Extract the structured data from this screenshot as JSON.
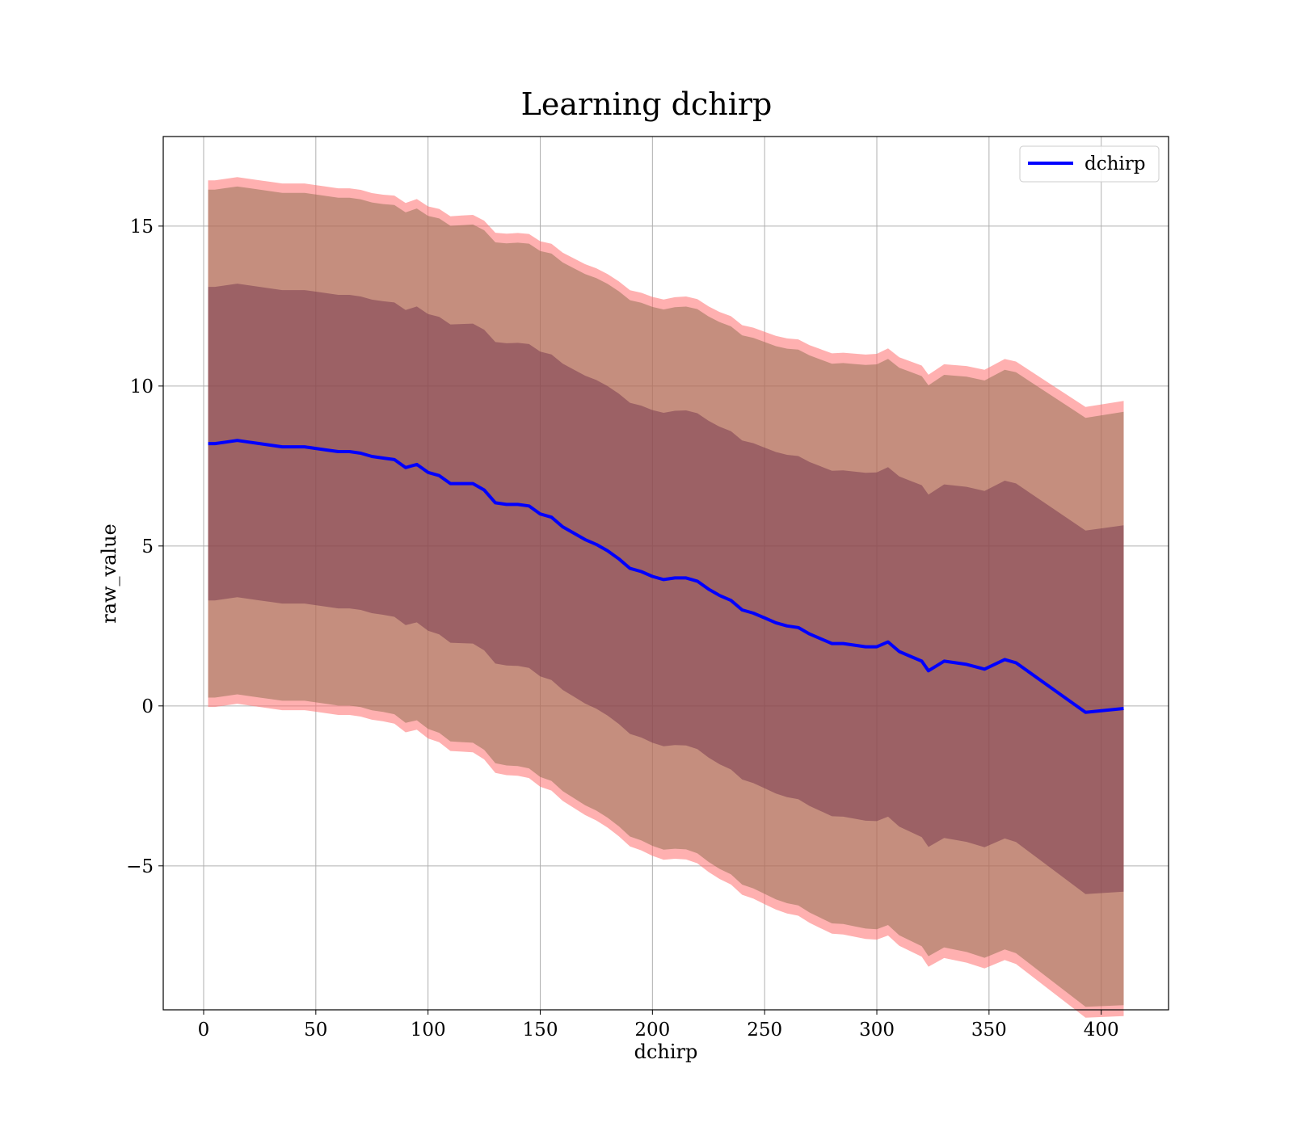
{
  "chart_data": {
    "type": "line",
    "title": "Learning dchirp",
    "xlabel": "dchirp",
    "ylabel": "raw_value",
    "xlim": [
      -18,
      430
    ],
    "ylim": [
      -9.5,
      17.8
    ],
    "x_ticks": [
      0,
      50,
      100,
      150,
      200,
      250,
      300,
      350,
      400
    ],
    "y_ticks": [
      -5,
      0,
      5,
      10,
      15
    ],
    "x_tick_labels": [
      "0",
      "50",
      "100",
      "150",
      "200",
      "250",
      "300",
      "350",
      "400"
    ],
    "y_tick_labels": [
      "−5",
      "0",
      "5",
      "10",
      "15"
    ],
    "grid": true,
    "legend": {
      "position": "top-right",
      "entries": [
        "dchirp"
      ]
    },
    "colors": {
      "line": "#0000ff",
      "band_outer": "#ff6f6f",
      "band_middle": "#8b6c4c",
      "band_inner": "#6a2a48"
    },
    "x": [
      2,
      5,
      10,
      15,
      20,
      25,
      30,
      35,
      40,
      45,
      50,
      55,
      60,
      65,
      70,
      75,
      80,
      85,
      90,
      95,
      100,
      105,
      110,
      115,
      120,
      125,
      130,
      135,
      140,
      145,
      150,
      155,
      160,
      165,
      170,
      175,
      180,
      185,
      190,
      195,
      200,
      205,
      210,
      215,
      220,
      225,
      230,
      235,
      240,
      245,
      250,
      255,
      260,
      265,
      270,
      275,
      280,
      285,
      290,
      295,
      300,
      305,
      310,
      315,
      320,
      323,
      330,
      340,
      348,
      357,
      362,
      375,
      393,
      410
    ],
    "series": [
      {
        "name": "dchirp",
        "values": [
          8.2,
          8.2,
          8.25,
          8.3,
          8.25,
          8.2,
          8.15,
          8.1,
          8.1,
          8.1,
          8.05,
          8.0,
          7.95,
          7.95,
          7.9,
          7.8,
          7.75,
          7.7,
          7.45,
          7.55,
          7.3,
          7.2,
          6.95,
          6.95,
          6.95,
          6.75,
          6.35,
          6.3,
          6.3,
          6.25,
          6.0,
          5.9,
          5.6,
          5.4,
          5.2,
          5.05,
          4.85,
          4.6,
          4.3,
          4.2,
          4.05,
          3.95,
          4.0,
          4.0,
          3.9,
          3.65,
          3.45,
          3.3,
          3.0,
          2.9,
          2.75,
          2.6,
          2.5,
          2.45,
          2.25,
          2.1,
          1.95,
          1.95,
          1.9,
          1.85,
          1.85,
          2.0,
          1.7,
          1.55,
          1.4,
          1.1,
          1.4,
          1.3,
          1.15,
          1.45,
          1.35,
          0.7,
          -0.2,
          -0.08
        ]
      }
    ]
  }
}
